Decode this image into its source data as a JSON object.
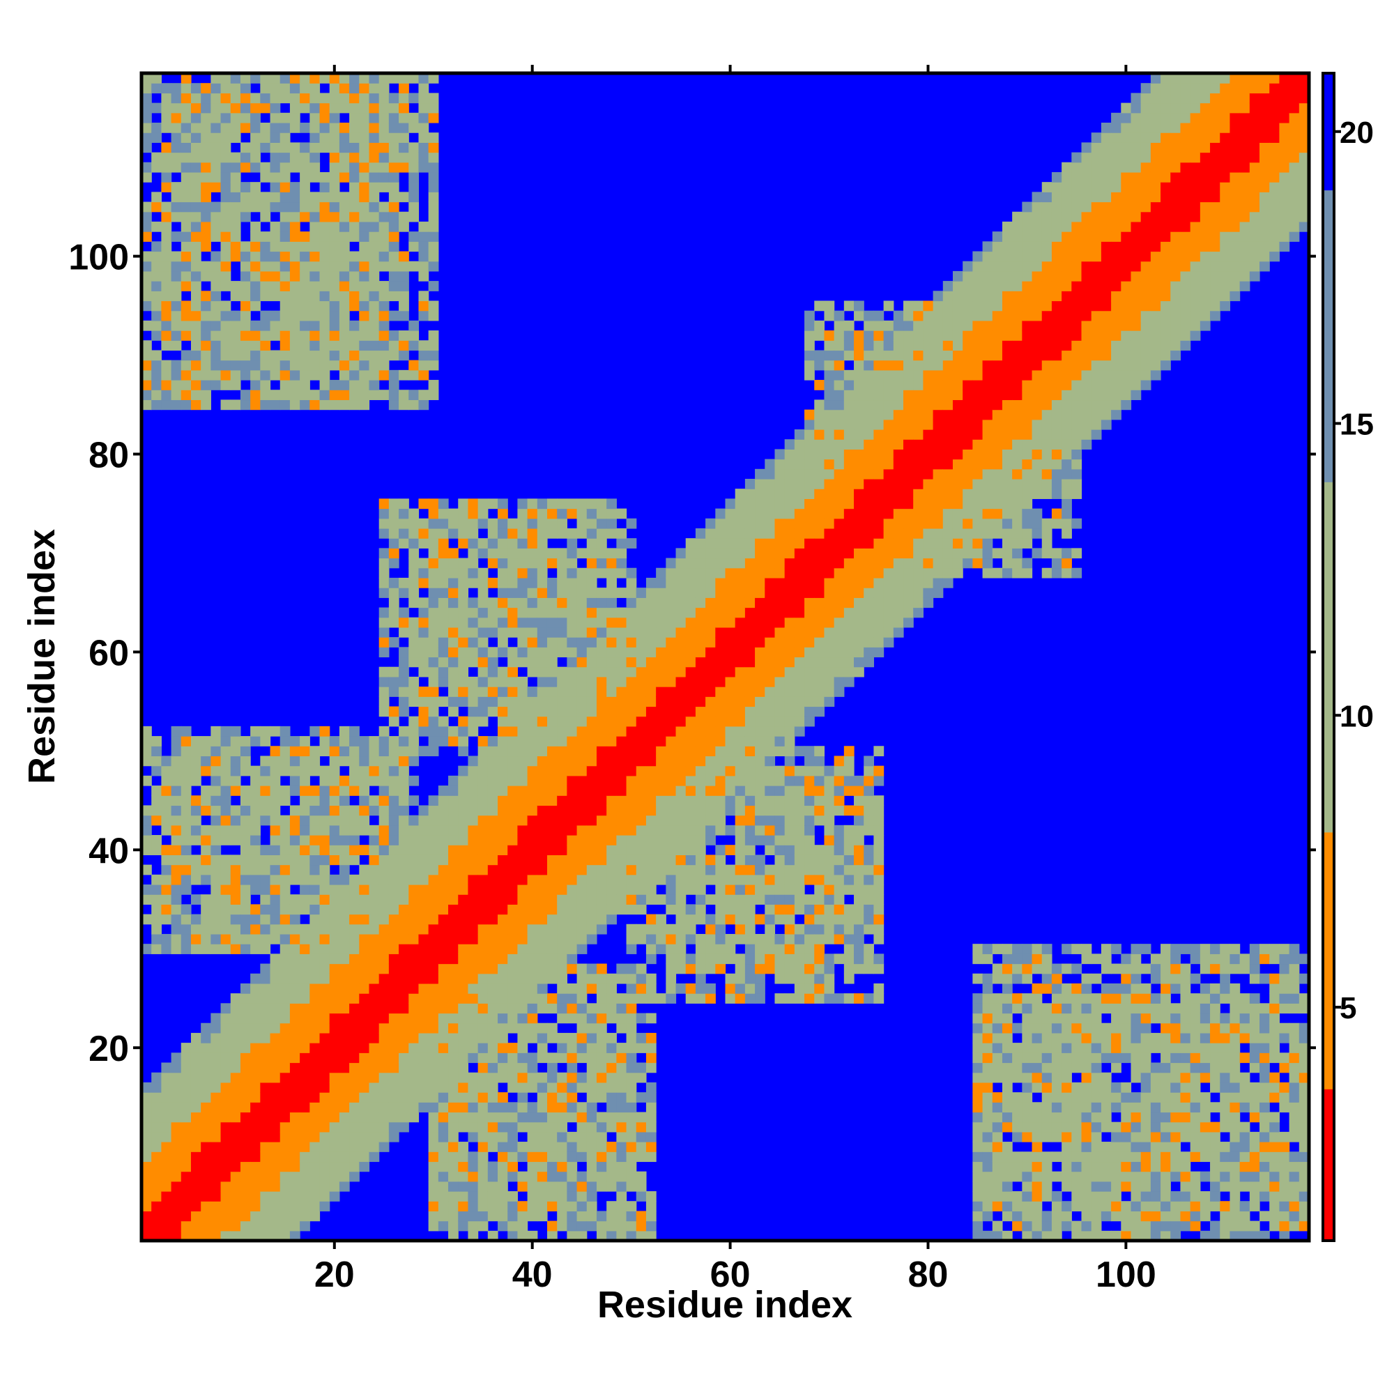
{
  "chart_data": {
    "type": "heatmap",
    "title": "",
    "xlabel": "Residue index",
    "ylabel": "Residue index",
    "n_residues": 118,
    "xlim": [
      1,
      118
    ],
    "ylim": [
      1,
      118
    ],
    "x_ticks": [
      20,
      40,
      60,
      80,
      100
    ],
    "y_ticks": [
      20,
      40,
      60,
      80,
      100
    ],
    "colorbar": {
      "range": [
        1,
        21
      ],
      "ticks": [
        5,
        10,
        15,
        20
      ],
      "colors": {
        "contact": "#ff0000",
        "near": "#ff8c00",
        "mid": "#a4b889",
        "far": "#6f8fb0",
        "none": "#0000ff"
      }
    },
    "contact_regions": [
      {
        "type": "diagonal band",
        "residues": [
          1,
          118
        ],
        "distance": [
          1,
          10
        ]
      },
      {
        "type": "antiparallel contact",
        "x": [
          1,
          30
        ],
        "y": [
          85,
          118
        ],
        "distance": [
          5,
          17
        ]
      },
      {
        "type": "antiparallel contact",
        "x": [
          1,
          28
        ],
        "y": [
          30,
          52
        ],
        "distance": [
          5,
          17
        ]
      },
      {
        "type": "antiparallel contact",
        "x": [
          28,
          50
        ],
        "y": [
          55,
          75
        ],
        "distance": [
          5,
          17
        ]
      },
      {
        "type": "antiparallel contact",
        "x": [
          30,
          50
        ],
        "y": [
          3,
          25
        ],
        "distance": [
          5,
          17
        ]
      },
      {
        "type": "antiparallel contact",
        "x": [
          50,
          75
        ],
        "y": [
          25,
          48
        ],
        "distance": [
          5,
          17
        ]
      },
      {
        "type": "antiparallel contact",
        "x": [
          68,
          95
        ],
        "y": [
          68,
          92
        ],
        "distance": [
          5,
          17
        ]
      },
      {
        "type": "antiparallel contact",
        "x": [
          85,
          118
        ],
        "y": [
          3,
          25
        ],
        "distance": [
          5,
          17
        ]
      }
    ]
  }
}
